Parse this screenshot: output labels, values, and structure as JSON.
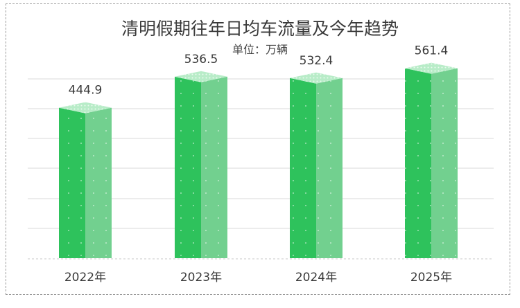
{
  "chart_data": {
    "type": "bar",
    "title": "清明假期往年日均车流量及今年趋势",
    "subtitle": "单位：万辆",
    "categories": [
      "2022年",
      "2023年",
      "2024年",
      "2025年"
    ],
    "values": [
      444.9,
      536.5,
      532.4,
      561.4
    ],
    "value_labels": [
      "444.9",
      "536.5",
      "532.4",
      "561.4"
    ],
    "ylim": [
      0,
      620
    ],
    "grid": true,
    "colors": {
      "front": "#2ec25c",
      "side": "#72d08f",
      "top": "#b8ecc8",
      "grid": "#d9d9d9"
    }
  }
}
